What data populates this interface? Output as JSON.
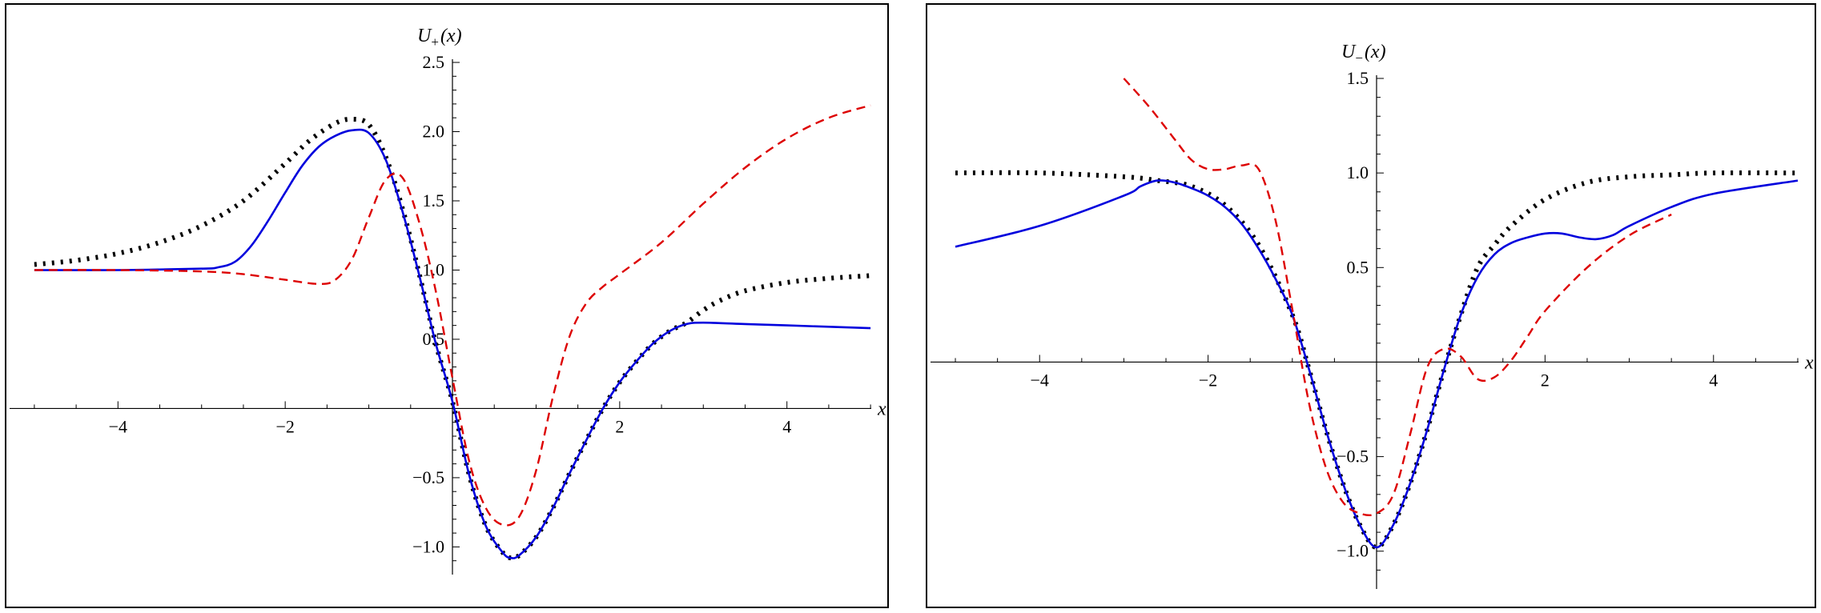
{
  "chart_data": [
    {
      "type": "line",
      "ylabel": {
        "main": "U",
        "sub": "+",
        "arg": "(x)"
      },
      "xlabel": "x",
      "xlim": [
        -5.2,
        5.2
      ],
      "ylim": [
        -1.2,
        2.5
      ],
      "xticks": [
        -4,
        -2,
        2,
        4
      ],
      "xtick_labels": [
        "−4",
        "−2",
        "2",
        "4"
      ],
      "yticks": [
        -1.0,
        -0.5,
        0.5,
        1.0,
        1.5,
        2.0,
        2.5
      ],
      "ytick_labels": [
        "−1.0",
        "−0.5",
        "0.5",
        "1.0",
        "1.5",
        "2.0",
        "2.5"
      ],
      "grid": false,
      "series": [
        {
          "style": "dotted",
          "color": "#000000",
          "x": [
            -5.0,
            -4.5,
            -4.0,
            -3.5,
            -3.0,
            -2.5,
            -2.0,
            -1.7,
            -1.4,
            -1.2,
            -1.0,
            -0.8,
            -0.6,
            -0.4,
            -0.2,
            0.0,
            0.2,
            0.4,
            0.6,
            0.7,
            0.8,
            1.0,
            1.2,
            1.4,
            1.6,
            1.8,
            2.0,
            2.2,
            2.4,
            2.6,
            2.8,
            3.0,
            3.2,
            3.5,
            4.0,
            4.5,
            5.0
          ],
          "y": [
            1.04,
            1.07,
            1.12,
            1.2,
            1.32,
            1.5,
            1.77,
            1.94,
            2.06,
            2.09,
            2.05,
            1.82,
            1.45,
            0.98,
            0.47,
            0.05,
            -0.48,
            -0.85,
            -1.04,
            -1.08,
            -1.06,
            -0.93,
            -0.72,
            -0.47,
            -0.23,
            0.0,
            0.19,
            0.34,
            0.47,
            0.56,
            0.62,
            0.71,
            0.78,
            0.85,
            0.91,
            0.94,
            0.96
          ]
        },
        {
          "style": "solid",
          "color": "#0000dd",
          "x": [
            -5.0,
            -4.0,
            -3.0,
            -2.8,
            -2.6,
            -2.4,
            -2.2,
            -2.0,
            -1.8,
            -1.6,
            -1.4,
            -1.2,
            -1.0,
            -0.8,
            -0.6,
            -0.4,
            -0.2,
            0.0,
            0.2,
            0.4,
            0.6,
            0.7,
            0.8,
            1.0,
            1.2,
            1.4,
            1.6,
            1.8,
            2.0,
            2.2,
            2.4,
            2.6,
            2.8,
            3.0,
            3.5,
            4.0,
            5.0
          ],
          "y": [
            1.0,
            1.0,
            1.01,
            1.02,
            1.06,
            1.18,
            1.36,
            1.56,
            1.75,
            1.89,
            1.97,
            2.01,
            1.99,
            1.8,
            1.43,
            0.97,
            0.47,
            0.05,
            -0.48,
            -0.85,
            -1.04,
            -1.08,
            -1.06,
            -0.93,
            -0.72,
            -0.47,
            -0.23,
            0.0,
            0.19,
            0.34,
            0.47,
            0.56,
            0.61,
            0.62,
            0.61,
            0.6,
            0.58
          ]
        },
        {
          "style": "dashed",
          "color": "#dd0000",
          "x": [
            -5.0,
            -4.0,
            -3.0,
            -2.5,
            -2.0,
            -1.6,
            -1.4,
            -1.2,
            -1.0,
            -0.8,
            -0.6,
            -0.4,
            -0.2,
            0.0,
            0.2,
            0.4,
            0.6,
            0.8,
            1.0,
            1.2,
            1.4,
            1.6,
            1.8,
            2.0,
            2.5,
            3.0,
            3.5,
            4.0,
            4.5,
            5.0
          ],
          "y": [
            1.0,
            1.0,
            0.99,
            0.97,
            0.93,
            0.9,
            0.93,
            1.08,
            1.38,
            1.65,
            1.67,
            1.35,
            0.85,
            0.22,
            -0.38,
            -0.72,
            -0.84,
            -0.78,
            -0.45,
            0.08,
            0.52,
            0.76,
            0.88,
            0.97,
            1.2,
            1.48,
            1.74,
            1.95,
            2.1,
            2.19
          ]
        }
      ]
    },
    {
      "type": "line",
      "ylabel": {
        "main": "U",
        "sub": "−",
        "arg": "(x)"
      },
      "xlabel": "x",
      "xlim": [
        -5.2,
        5.2
      ],
      "ylim": [
        -1.2,
        1.5
      ],
      "xticks": [
        -4,
        -2,
        2,
        4
      ],
      "xtick_labels": [
        "−4",
        "−2",
        "2",
        "4"
      ],
      "yticks": [
        -1.0,
        -0.5,
        0.5,
        1.0,
        1.5
      ],
      "ytick_labels": [
        "−1.0",
        "−0.5",
        "0.5",
        "1.0",
        "1.5"
      ],
      "grid": false,
      "series": [
        {
          "style": "dotted",
          "color": "#000000",
          "x": [
            -5.0,
            -4.0,
            -3.0,
            -2.6,
            -2.2,
            -1.8,
            -1.4,
            -1.0,
            -0.8,
            -0.6,
            -0.4,
            -0.2,
            0.0,
            0.2,
            0.4,
            0.6,
            0.8,
            1.0,
            1.2,
            1.4,
            1.6,
            2.0,
            2.5,
            3.0,
            3.5,
            4.0,
            5.0
          ],
          "y": [
            1.0,
            1.0,
            0.98,
            0.96,
            0.93,
            0.83,
            0.62,
            0.25,
            -0.04,
            -0.36,
            -0.64,
            -0.86,
            -0.98,
            -0.86,
            -0.64,
            -0.36,
            -0.04,
            0.25,
            0.5,
            0.62,
            0.72,
            0.86,
            0.95,
            0.98,
            0.99,
            1.0,
            1.0
          ]
        },
        {
          "style": "solid",
          "color": "#0000dd",
          "x": [
            -5.0,
            -4.0,
            -3.0,
            -2.8,
            -2.6,
            -2.4,
            -2.2,
            -2.0,
            -1.8,
            -1.6,
            -1.4,
            -1.2,
            -1.0,
            -0.8,
            -0.6,
            -0.4,
            -0.2,
            0.0,
            0.2,
            0.4,
            0.6,
            0.8,
            1.0,
            1.2,
            1.4,
            1.6,
            1.8,
            2.0,
            2.2,
            2.4,
            2.6,
            2.8,
            3.0,
            3.5,
            4.0,
            5.0
          ],
          "y": [
            0.61,
            0.72,
            0.88,
            0.93,
            0.96,
            0.95,
            0.92,
            0.88,
            0.82,
            0.73,
            0.6,
            0.44,
            0.25,
            -0.04,
            -0.36,
            -0.64,
            -0.86,
            -0.98,
            -0.86,
            -0.64,
            -0.36,
            -0.04,
            0.25,
            0.45,
            0.57,
            0.63,
            0.66,
            0.68,
            0.68,
            0.66,
            0.65,
            0.67,
            0.72,
            0.82,
            0.89,
            0.96
          ]
        },
        {
          "style": "dashed",
          "color": "#dd0000",
          "x": [
            -3.0,
            -2.7,
            -2.4,
            -2.2,
            -2.0,
            -1.8,
            -1.6,
            -1.4,
            -1.2,
            -1.0,
            -0.8,
            -0.6,
            -0.4,
            -0.2,
            0.0,
            0.2,
            0.4,
            0.6,
            0.8,
            1.0,
            1.2,
            1.4,
            1.6,
            1.8,
            2.0,
            2.5,
            3.0,
            3.5
          ],
          "y": [
            1.5,
            1.35,
            1.18,
            1.07,
            1.02,
            1.02,
            1.04,
            1.02,
            0.75,
            0.28,
            -0.22,
            -0.56,
            -0.74,
            -0.8,
            -0.8,
            -0.7,
            -0.38,
            -0.03,
            0.07,
            0.03,
            -0.09,
            -0.08,
            0.01,
            0.14,
            0.27,
            0.5,
            0.67,
            0.78
          ]
        }
      ]
    }
  ]
}
